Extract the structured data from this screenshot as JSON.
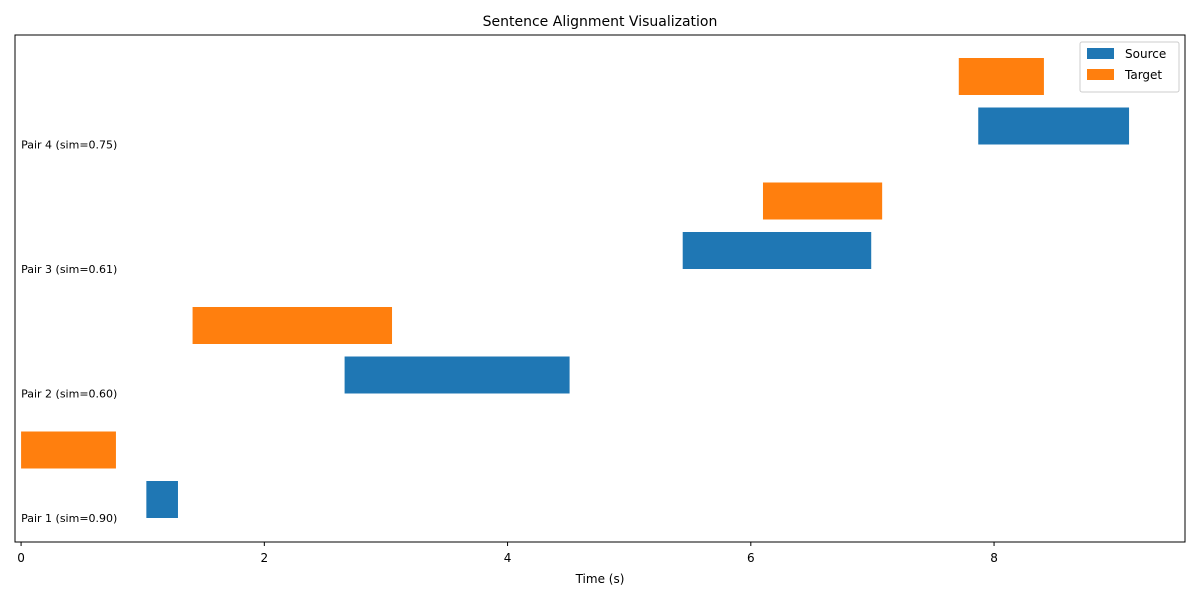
{
  "chart_data": {
    "type": "bar",
    "orientation": "horizontal-timeline",
    "title": "Sentence Alignment Visualization",
    "xlabel": "Time (s)",
    "ylabel": "",
    "xlim": [
      -0.05,
      9.57
    ],
    "xticks": [
      0,
      2,
      4,
      6,
      8
    ],
    "grid": false,
    "legend": {
      "placement": "top-right",
      "entries": [
        {
          "name": "Source",
          "color": "#1f77b4"
        },
        {
          "name": "Target",
          "color": "#ff7f0e"
        }
      ]
    },
    "pairs": [
      {
        "label": "Pair 1 (sim=0.90)",
        "source": [
          1.03,
          1.29
        ],
        "target": [
          0.0,
          0.78
        ]
      },
      {
        "label": "Pair 2 (sim=0.60)",
        "source": [
          2.66,
          4.51
        ],
        "target": [
          1.41,
          3.05
        ]
      },
      {
        "label": "Pair 3 (sim=0.61)",
        "source": [
          5.44,
          6.99
        ],
        "target": [
          6.1,
          7.08
        ]
      },
      {
        "label": "Pair 4 (sim=0.75)",
        "source": [
          7.87,
          9.11
        ],
        "target": [
          7.71,
          8.41
        ]
      }
    ]
  }
}
